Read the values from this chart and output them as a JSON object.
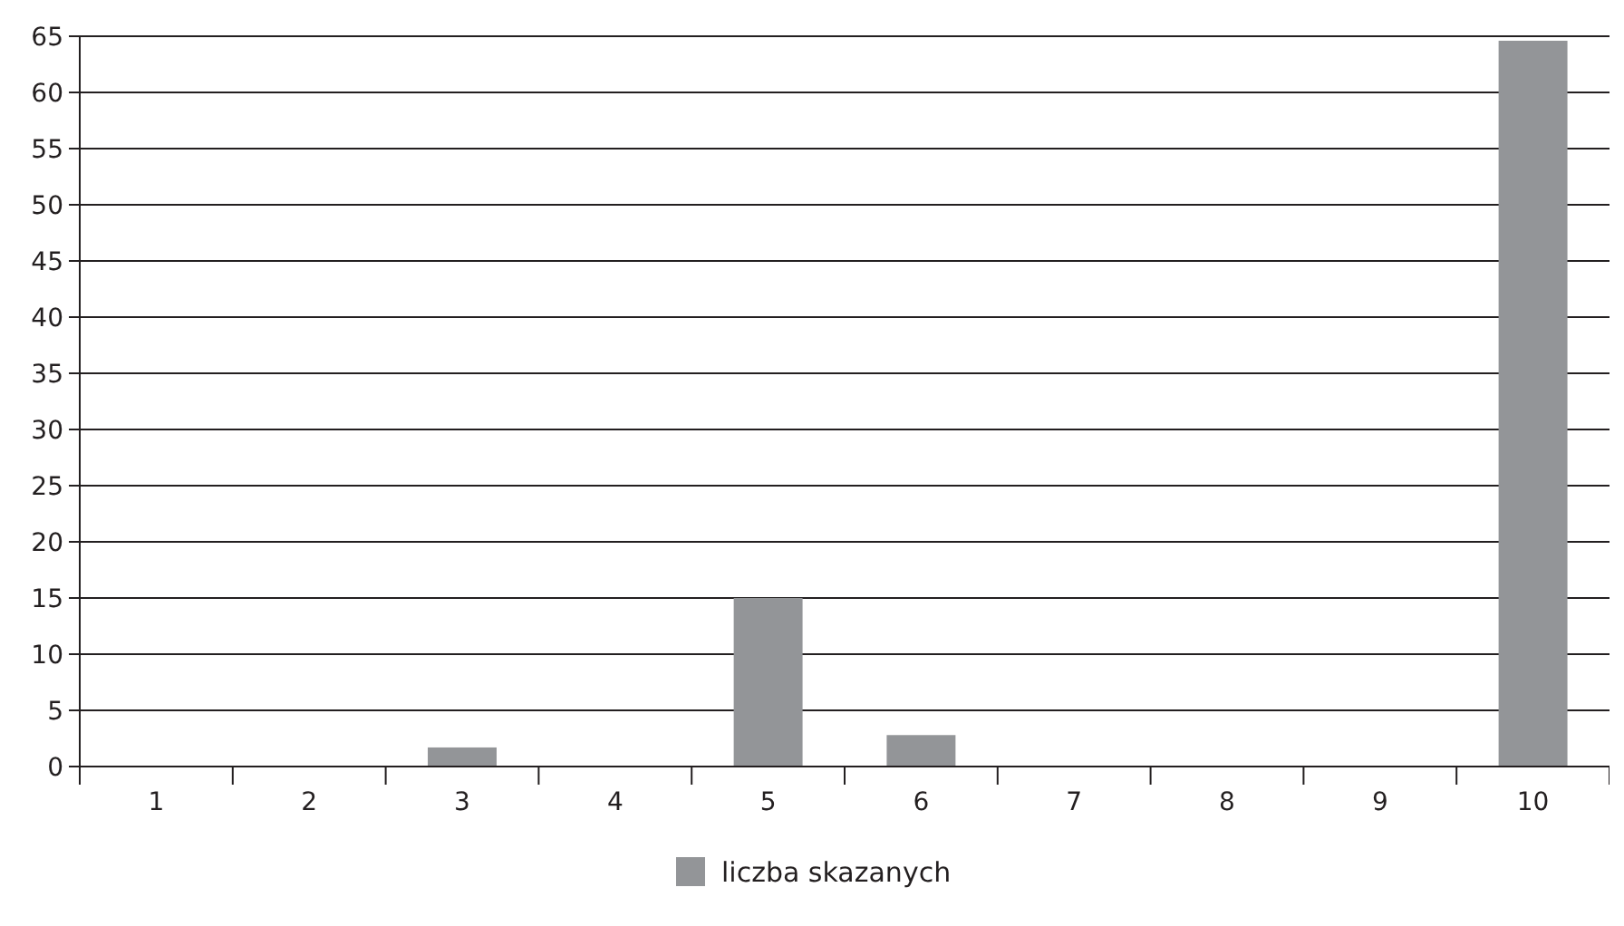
{
  "chart_data": {
    "type": "bar",
    "categories": [
      "1",
      "2",
      "3",
      "4",
      "5",
      "6",
      "7",
      "8",
      "9",
      "10"
    ],
    "series": [
      {
        "name": "liczba skazanych",
        "color": "#939598",
        "values": [
          0,
          0,
          1.7,
          0,
          15,
          2.8,
          0,
          0,
          0,
          64.6
        ]
      }
    ],
    "ylim": [
      0,
      65
    ],
    "yticks": [
      0,
      5,
      10,
      15,
      20,
      25,
      30,
      35,
      40,
      45,
      50,
      55,
      60,
      65
    ],
    "grid": "y",
    "legend": "bottom"
  }
}
